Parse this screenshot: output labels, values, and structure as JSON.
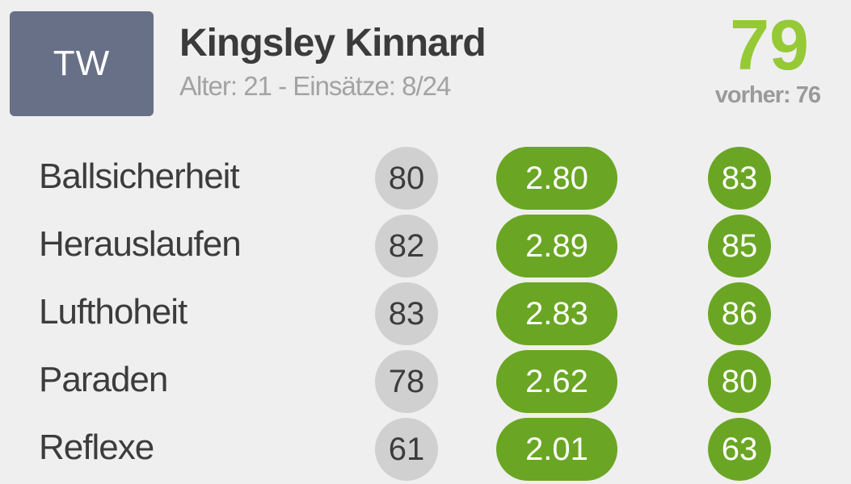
{
  "player": {
    "position": "TW",
    "name": "Kingsley Kinnard",
    "meta": "Alter: 21 - Einsätze: 8/24",
    "overall": "79",
    "previous": "vorher: 76"
  },
  "attributes": [
    {
      "label": "Ballsicherheit",
      "current": "80",
      "gain": "2.80",
      "new": "83"
    },
    {
      "label": "Herauslaufen",
      "current": "82",
      "gain": "2.89",
      "new": "85"
    },
    {
      "label": "Lufthoheit",
      "current": "83",
      "gain": "2.83",
      "new": "86"
    },
    {
      "label": "Paraden",
      "current": "78",
      "gain": "2.62",
      "new": "80"
    },
    {
      "label": "Reflexe",
      "current": "61",
      "gain": "2.01",
      "new": "63"
    }
  ],
  "colors": {
    "background": "#efefef",
    "badge": "#677086",
    "overall": "#95c936",
    "gain_pill": "#6aa624",
    "current_circle": "#d0d0d0"
  }
}
